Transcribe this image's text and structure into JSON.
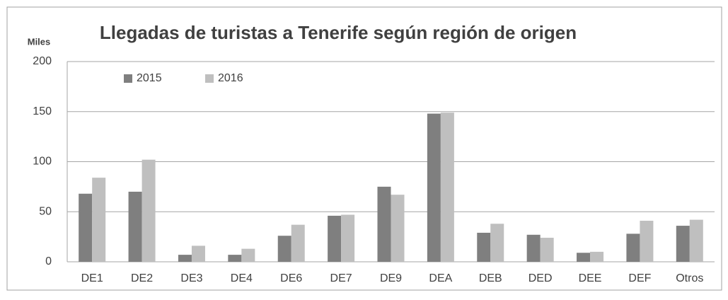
{
  "chart_data": {
    "type": "bar",
    "title": "Llegadas de turistas a Tenerife según región de origen",
    "ylabel": "Miles",
    "categories": [
      "DE1",
      "DE2",
      "DE3",
      "DE4",
      "DE6",
      "DE7",
      "DE9",
      "DEA",
      "DEB",
      "DED",
      "DEE",
      "DEF",
      "Otros"
    ],
    "series": [
      {
        "name": "2015",
        "color": "#7f7f7f",
        "values": [
          68,
          70,
          7,
          7,
          26,
          46,
          75,
          148,
          29,
          27,
          9,
          28,
          36
        ]
      },
      {
        "name": "2016",
        "color": "#bfbfbf",
        "values": [
          84,
          102,
          16,
          13,
          37,
          47,
          67,
          149,
          38,
          24,
          10,
          41,
          42
        ]
      }
    ],
    "ylim": [
      0,
      200
    ],
    "yticks": [
      0,
      50,
      100,
      150,
      200
    ],
    "grid": true,
    "legend": "top-left"
  }
}
